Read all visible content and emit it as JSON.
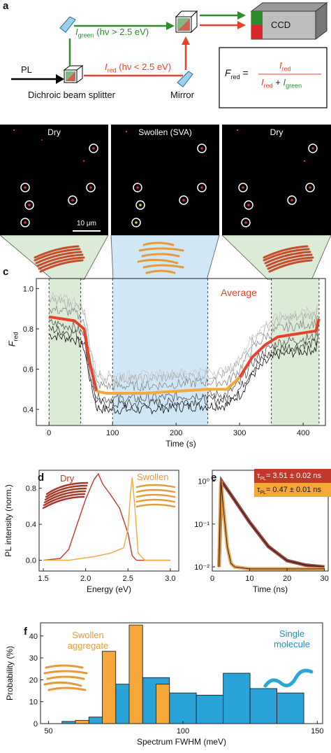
{
  "panel_a": {
    "letter": "a",
    "pl": "PL",
    "dichroic": "Dichroic beam splitter",
    "mirror": "Mirror",
    "ccd": "CCD",
    "i_green": "I",
    "i_green_sub": "green",
    "i_green_cond": "(hν > 2.5 eV)",
    "i_red": "I",
    "i_red_sub": "red",
    "i_red_cond": "(hν < 2.5 eV)",
    "formula_lhs": "F",
    "formula_lhs_sub": "red",
    "formula_num": "I",
    "formula_num_sub": "red",
    "formula_den1": "I",
    "formula_den1_sub": "red",
    "formula_plus": "+",
    "formula_den2": "I",
    "formula_den2_sub": "green"
  },
  "panel_b": {
    "letter": "b",
    "images": [
      {
        "label": "Dry"
      },
      {
        "label": "Swollen (SVA)"
      },
      {
        "label": "Dry"
      }
    ],
    "scalebar": "10 μm"
  },
  "panel_c": {
    "letter": "c",
    "average_label": "Average",
    "ylabel": "F",
    "ylabel_sub": "red"
  },
  "panel_d": {
    "letter": "d",
    "dry": "Dry",
    "swollen": "Swollen"
  },
  "panel_e": {
    "letter": "e",
    "tau1": "τ",
    "tau1_sub": "PL",
    "tau1_val": "= 3.51 ± 0.02 ns",
    "tau2": "τ",
    "tau2_sub": "PL",
    "tau2_val": "= 0.47 ± 0.01 ns"
  },
  "panel_f": {
    "letter": "f",
    "swollen": "Swollen aggregate",
    "single": "Single molecule"
  },
  "colors": {
    "red": "#e8412b",
    "green": "#2e8b2e",
    "orange": "#f6a73a",
    "blue": "#29a3d8",
    "shade_green": "#dcebd6",
    "shade_blue": "#cfe7f7"
  },
  "chart_data": [
    {
      "type": "line",
      "panel": "c",
      "xlabel": "Time (s)",
      "ylabel": "Fred",
      "xlim": [
        -20,
        435
      ],
      "ylim": [
        0.32,
        1.05
      ],
      "xticks": [
        0,
        100,
        200,
        300,
        400
      ],
      "yticks": [
        0.4,
        0.6,
        0.8,
        1.0
      ],
      "xtick_labels": [
        "0",
        "100",
        "200",
        "300",
        "400"
      ],
      "ytick_labels": [
        "0.4",
        "0.6",
        "0.8",
        "1.0"
      ],
      "shaded_regions": [
        {
          "from": 0,
          "to": 50,
          "color": "green"
        },
        {
          "from": 100,
          "to": 250,
          "color": "blue"
        },
        {
          "from": 350,
          "to": 425,
          "color": "green"
        }
      ],
      "dashed_lines": [
        0,
        50,
        100,
        250,
        350,
        425
      ],
      "series": [
        {
          "name": "Average",
          "x": [
            0,
            20,
            40,
            55,
            65,
            75,
            90,
            120,
            150,
            200,
            250,
            280,
            300,
            320,
            340,
            360,
            380,
            400,
            420,
            425
          ],
          "y": [
            0.86,
            0.85,
            0.84,
            0.8,
            0.62,
            0.49,
            0.48,
            0.48,
            0.48,
            0.49,
            0.5,
            0.5,
            0.56,
            0.66,
            0.72,
            0.76,
            0.77,
            0.78,
            0.79,
            0.85
          ]
        }
      ],
      "legend": "inline"
    },
    {
      "type": "line",
      "panel": "d",
      "xlabel": "Energy (eV)",
      "ylabel": "PL intensity (norm.)",
      "xlim": [
        1.45,
        3.1
      ],
      "ylim": [
        -0.12,
        1.0
      ],
      "xticks": [
        1.5,
        2.0,
        2.5,
        3.0
      ],
      "yticks": [
        0.0,
        0.4,
        0.8
      ],
      "xtick_labels": [
        "1.5",
        "2.0",
        "2.5",
        "3.0"
      ],
      "ytick_labels": [
        "0.0",
        "0.4",
        "0.8"
      ],
      "series": [
        {
          "name": "Dry",
          "x": [
            1.5,
            1.7,
            1.8,
            1.9,
            2.0,
            2.1,
            2.15,
            2.2,
            2.3,
            2.4,
            2.5,
            2.55,
            2.6,
            3.0
          ],
          "y": [
            0.0,
            0.02,
            0.12,
            0.4,
            0.68,
            0.9,
            0.96,
            0.85,
            0.72,
            0.58,
            0.3,
            0.05,
            0.0,
            0.0
          ]
        },
        {
          "name": "Swollen",
          "x": [
            1.5,
            1.8,
            2.1,
            2.3,
            2.45,
            2.5,
            2.53,
            2.55,
            2.58,
            2.62,
            2.7,
            3.0
          ],
          "y": [
            0.0,
            0.0,
            0.04,
            0.08,
            0.14,
            0.35,
            0.75,
            0.92,
            0.6,
            0.08,
            0.0,
            0.0
          ]
        }
      ]
    },
    {
      "type": "line",
      "panel": "e",
      "xlabel": "Time (ns)",
      "yscale": "log",
      "xlim": [
        0,
        31
      ],
      "ylim": [
        0.008,
        1.8
      ],
      "xticks": [
        0,
        10,
        20,
        30
      ],
      "yticks": [
        0.01,
        0.1,
        1
      ],
      "xtick_labels": [
        "0",
        "10",
        "20",
        "30"
      ],
      "ytick_labels": [
        "10⁻²",
        "10⁻¹",
        "10⁰"
      ],
      "series": [
        {
          "name": "τPL = 3.51 ± 0.02 ns",
          "x": [
            1.8,
            2.5,
            5,
            10,
            15,
            20,
            25,
            30
          ],
          "y": [
            0.01,
            1.0,
            0.48,
            0.11,
            0.03,
            0.014,
            0.011,
            0.01
          ]
        },
        {
          "name": "τPL = 0.47 ± 0.01 ns",
          "x": [
            1.8,
            2.3,
            3,
            4,
            5,
            6,
            10,
            30
          ],
          "y": [
            0.01,
            1.0,
            0.22,
            0.03,
            0.012,
            0.01,
            0.009,
            0.009
          ]
        }
      ]
    },
    {
      "type": "bar",
      "panel": "f",
      "xlabel": "Spectrum FWHM (meV)",
      "ylabel": "Probability (%)",
      "xlim": [
        47,
        152
      ],
      "ylim": [
        0,
        46
      ],
      "xticks": [
        50,
        100,
        150
      ],
      "yticks": [
        0,
        10,
        20,
        30,
        40
      ],
      "xtick_labels": [
        "50",
        "100",
        "150"
      ],
      "ytick_labels": [
        "0",
        "10",
        "20",
        "30",
        "40"
      ],
      "series": [
        {
          "name": "Swollen aggregate",
          "bins": [
            [
              60,
              65
            ],
            [
              65,
              70
            ],
            [
              70,
              75
            ],
            [
              75,
              80
            ],
            [
              80,
              85
            ],
            [
              85,
              90
            ],
            [
              90,
              95
            ]
          ],
          "values": [
            1.5,
            0,
            33,
            0,
            45,
            0,
            18
          ]
        },
        {
          "name": "Single molecule",
          "bins": [
            [
              55,
              65
            ],
            [
              65,
              75
            ],
            [
              75,
              85
            ],
            [
              85,
              95
            ],
            [
              95,
              105
            ],
            [
              105,
              115
            ],
            [
              115,
              125
            ],
            [
              125,
              135
            ],
            [
              135,
              145
            ]
          ],
          "values": [
            1,
            3,
            18,
            21,
            14,
            13,
            23,
            16,
            14
          ]
        }
      ]
    }
  ]
}
